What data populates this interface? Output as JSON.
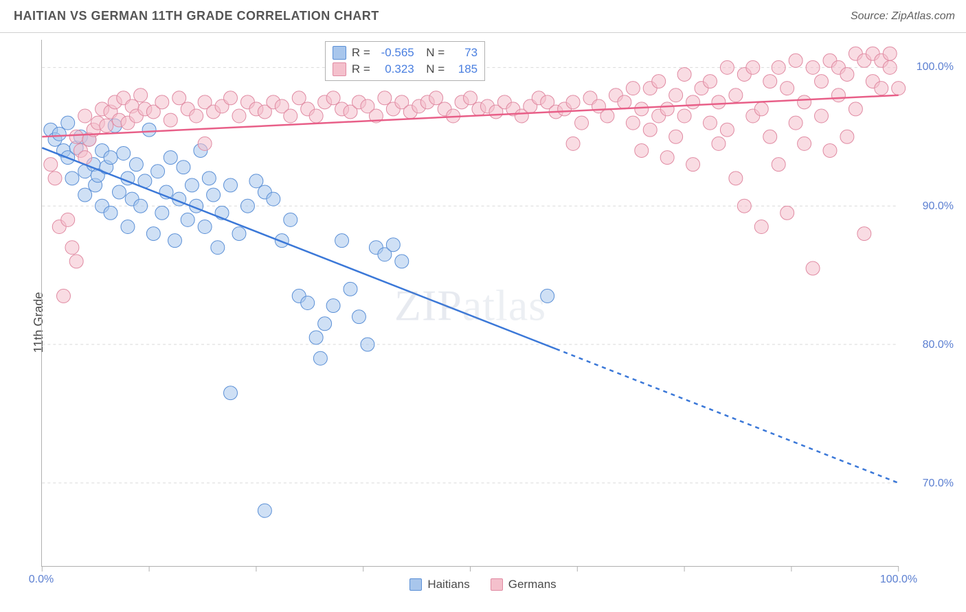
{
  "header": {
    "title": "HAITIAN VS GERMAN 11TH GRADE CORRELATION CHART",
    "source": "Source: ZipAtlas.com"
  },
  "ylabel": "11th Grade",
  "watermark": "ZIPatlas",
  "chart": {
    "type": "scatter",
    "xlim": [
      0,
      100
    ],
    "ylim": [
      64,
      102
    ],
    "xticks": [
      0,
      12.5,
      25,
      37.5,
      50,
      62.5,
      75,
      87.5,
      100
    ],
    "xtick_labels": {
      "0": "0.0%",
      "100": "100.0%"
    },
    "yticks": [
      70,
      80,
      90,
      100
    ],
    "ytick_labels": {
      "70": "70.0%",
      "80": "80.0%",
      "90": "90.0%",
      "100": "100.0%"
    },
    "grid_color": "#d9d9d9",
    "grid_dash": "4 4",
    "background_color": "#ffffff",
    "marker_radius": 10,
    "marker_opacity": 0.55,
    "series": [
      {
        "name": "Haitians",
        "color_fill": "#a8c6ec",
        "color_stroke": "#5a8fd6",
        "line_color": "#3b78d8",
        "line_width": 2.5,
        "trend": {
          "x1": 0,
          "y1": 94.2,
          "x2": 100,
          "y2": 70.0,
          "solid_to_x": 60
        },
        "R": "-0.565",
        "N": "73",
        "points": [
          [
            1,
            95.5
          ],
          [
            1.5,
            94.8
          ],
          [
            2,
            95.2
          ],
          [
            2.5,
            94.0
          ],
          [
            3,
            96.0
          ],
          [
            3,
            93.5
          ],
          [
            3.5,
            92.0
          ],
          [
            4,
            94.2
          ],
          [
            4.5,
            95.0
          ],
          [
            5,
            92.5
          ],
          [
            5,
            90.8
          ],
          [
            5.5,
            94.8
          ],
          [
            6,
            93.0
          ],
          [
            6.2,
            91.5
          ],
          [
            6.5,
            92.2
          ],
          [
            7,
            94.0
          ],
          [
            7,
            90.0
          ],
          [
            7.5,
            92.8
          ],
          [
            8,
            93.5
          ],
          [
            8,
            89.5
          ],
          [
            8.5,
            95.8
          ],
          [
            9,
            91.0
          ],
          [
            9.5,
            93.8
          ],
          [
            10,
            92.0
          ],
          [
            10,
            88.5
          ],
          [
            10.5,
            90.5
          ],
          [
            11,
            93.0
          ],
          [
            11.5,
            90.0
          ],
          [
            12,
            91.8
          ],
          [
            12.5,
            95.5
          ],
          [
            13,
            88.0
          ],
          [
            13.5,
            92.5
          ],
          [
            14,
            89.5
          ],
          [
            14.5,
            91.0
          ],
          [
            15,
            93.5
          ],
          [
            15.5,
            87.5
          ],
          [
            16,
            90.5
          ],
          [
            16.5,
            92.8
          ],
          [
            17,
            89.0
          ],
          [
            17.5,
            91.5
          ],
          [
            18,
            90.0
          ],
          [
            18.5,
            94.0
          ],
          [
            19,
            88.5
          ],
          [
            19.5,
            92.0
          ],
          [
            20,
            90.8
          ],
          [
            20.5,
            87.0
          ],
          [
            21,
            89.5
          ],
          [
            22,
            91.5
          ],
          [
            23,
            88.0
          ],
          [
            24,
            90.0
          ],
          [
            25,
            91.8
          ],
          [
            26,
            91.0
          ],
          [
            27,
            90.5
          ],
          [
            28,
            87.5
          ],
          [
            29,
            89.0
          ],
          [
            30,
            83.5
          ],
          [
            31,
            83.0
          ],
          [
            32,
            80.5
          ],
          [
            32.5,
            79.0
          ],
          [
            33,
            81.5
          ],
          [
            34,
            82.8
          ],
          [
            35,
            87.5
          ],
          [
            36,
            84.0
          ],
          [
            37,
            82.0
          ],
          [
            38,
            80.0
          ],
          [
            39,
            87.0
          ],
          [
            40,
            86.5
          ],
          [
            41,
            87.2
          ],
          [
            42,
            86.0
          ],
          [
            22,
            76.5
          ],
          [
            26,
            68.0
          ],
          [
            59,
            83.5
          ]
        ]
      },
      {
        "name": "Germans",
        "color_fill": "#f4c0cc",
        "color_stroke": "#e08aa2",
        "line_color": "#e85f88",
        "line_width": 2.5,
        "trend": {
          "x1": 0,
          "y1": 95.0,
          "x2": 100,
          "y2": 98.0,
          "solid_to_x": 100
        },
        "R": "0.323",
        "N": "185",
        "points": [
          [
            1,
            93.0
          ],
          [
            1.5,
            92.0
          ],
          [
            2,
            88.5
          ],
          [
            2.5,
            83.5
          ],
          [
            3,
            89.0
          ],
          [
            3.5,
            87.0
          ],
          [
            4,
            86.0
          ],
          [
            4,
            95.0
          ],
          [
            4.5,
            94.0
          ],
          [
            5,
            93.5
          ],
          [
            5,
            96.5
          ],
          [
            5.5,
            94.8
          ],
          [
            6,
            95.5
          ],
          [
            6.5,
            96.0
          ],
          [
            7,
            97.0
          ],
          [
            7.5,
            95.8
          ],
          [
            8,
            96.8
          ],
          [
            8.5,
            97.5
          ],
          [
            9,
            96.2
          ],
          [
            9.5,
            97.8
          ],
          [
            10,
            96.0
          ],
          [
            10.5,
            97.2
          ],
          [
            11,
            96.5
          ],
          [
            11.5,
            98.0
          ],
          [
            12,
            97.0
          ],
          [
            13,
            96.8
          ],
          [
            14,
            97.5
          ],
          [
            15,
            96.2
          ],
          [
            16,
            97.8
          ],
          [
            17,
            97.0
          ],
          [
            18,
            96.5
          ],
          [
            19,
            97.5
          ],
          [
            19,
            94.5
          ],
          [
            20,
            96.8
          ],
          [
            21,
            97.2
          ],
          [
            22,
            97.8
          ],
          [
            23,
            96.5
          ],
          [
            24,
            97.5
          ],
          [
            25,
            97.0
          ],
          [
            26,
            96.8
          ],
          [
            27,
            97.5
          ],
          [
            28,
            97.2
          ],
          [
            29,
            96.5
          ],
          [
            30,
            97.8
          ],
          [
            31,
            97.0
          ],
          [
            32,
            96.5
          ],
          [
            33,
            97.5
          ],
          [
            34,
            97.8
          ],
          [
            35,
            97.0
          ],
          [
            36,
            96.8
          ],
          [
            37,
            97.5
          ],
          [
            38,
            97.2
          ],
          [
            39,
            96.5
          ],
          [
            40,
            97.8
          ],
          [
            41,
            97.0
          ],
          [
            42,
            97.5
          ],
          [
            43,
            96.8
          ],
          [
            44,
            97.2
          ],
          [
            45,
            97.5
          ],
          [
            46,
            97.8
          ],
          [
            47,
            97.0
          ],
          [
            48,
            96.5
          ],
          [
            49,
            97.5
          ],
          [
            50,
            97.8
          ],
          [
            51,
            97.0
          ],
          [
            52,
            97.2
          ],
          [
            53,
            96.8
          ],
          [
            54,
            97.5
          ],
          [
            55,
            97.0
          ],
          [
            56,
            96.5
          ],
          [
            57,
            97.2
          ],
          [
            58,
            97.8
          ],
          [
            59,
            97.5
          ],
          [
            60,
            96.8
          ],
          [
            61,
            97.0
          ],
          [
            62,
            97.5
          ],
          [
            62,
            94.5
          ],
          [
            63,
            96.0
          ],
          [
            64,
            97.8
          ],
          [
            65,
            97.2
          ],
          [
            66,
            96.5
          ],
          [
            67,
            98.0
          ],
          [
            68,
            97.5
          ],
          [
            69,
            96.0
          ],
          [
            69,
            98.5
          ],
          [
            70,
            97.0
          ],
          [
            70,
            94.0
          ],
          [
            71,
            95.5
          ],
          [
            71,
            98.5
          ],
          [
            72,
            96.5
          ],
          [
            72,
            99.0
          ],
          [
            73,
            97.0
          ],
          [
            73,
            93.5
          ],
          [
            74,
            98.0
          ],
          [
            74,
            95.0
          ],
          [
            75,
            96.5
          ],
          [
            75,
            99.5
          ],
          [
            76,
            97.5
          ],
          [
            76,
            93.0
          ],
          [
            77,
            98.5
          ],
          [
            78,
            96.0
          ],
          [
            78,
            99.0
          ],
          [
            79,
            94.5
          ],
          [
            79,
            97.5
          ],
          [
            80,
            100.0
          ],
          [
            80,
            95.5
          ],
          [
            81,
            98.0
          ],
          [
            81,
            92.0
          ],
          [
            82,
            99.5
          ],
          [
            82,
            90.0
          ],
          [
            83,
            96.5
          ],
          [
            83,
            100.0
          ],
          [
            84,
            97.0
          ],
          [
            84,
            88.5
          ],
          [
            85,
            99.0
          ],
          [
            85,
            95.0
          ],
          [
            86,
            100.0
          ],
          [
            86,
            93.0
          ],
          [
            87,
            98.5
          ],
          [
            87,
            89.5
          ],
          [
            88,
            100.5
          ],
          [
            88,
            96.0
          ],
          [
            89,
            97.5
          ],
          [
            89,
            94.5
          ],
          [
            90,
            100.0
          ],
          [
            90,
            85.5
          ],
          [
            91,
            99.0
          ],
          [
            91,
            96.5
          ],
          [
            92,
            100.5
          ],
          [
            92,
            94.0
          ],
          [
            93,
            98.0
          ],
          [
            93,
            100.0
          ],
          [
            94,
            99.5
          ],
          [
            94,
            95.0
          ],
          [
            95,
            101.0
          ],
          [
            95,
            97.0
          ],
          [
            96,
            100.5
          ],
          [
            96,
            88.0
          ],
          [
            97,
            101.0
          ],
          [
            97,
            99.0
          ],
          [
            98,
            100.5
          ],
          [
            98,
            98.5
          ],
          [
            99,
            101.0
          ],
          [
            99,
            100.0
          ],
          [
            100,
            98.5
          ]
        ]
      }
    ]
  },
  "legend": {
    "items": [
      {
        "label": "Haitians",
        "fill": "#a8c6ec",
        "stroke": "#5a8fd6"
      },
      {
        "label": "Germans",
        "fill": "#f4c0cc",
        "stroke": "#e08aa2"
      }
    ]
  },
  "statbox": {
    "rows": [
      {
        "fill": "#a8c6ec",
        "stroke": "#5a8fd6",
        "R": "-0.565",
        "N": "73"
      },
      {
        "fill": "#f4c0cc",
        "stroke": "#e08aa2",
        "R": "0.323",
        "N": "185"
      }
    ]
  }
}
